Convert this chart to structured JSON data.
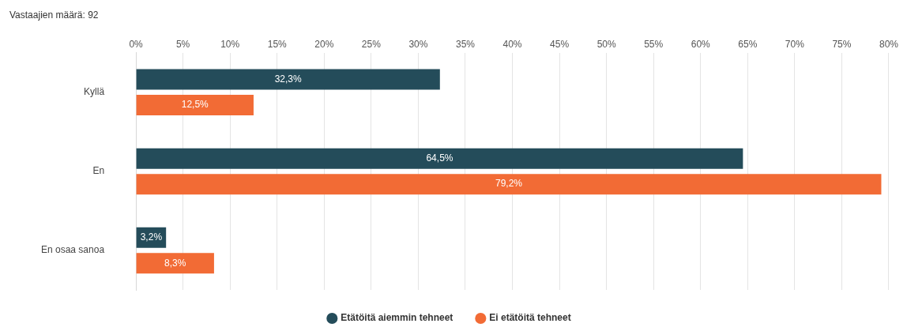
{
  "chart_data": {
    "type": "bar",
    "orientation": "horizontal",
    "title": "Vastaajien määrä: 92",
    "categories": [
      "Kyllä",
      "En",
      "En osaa sanoa"
    ],
    "series": [
      {
        "name": "Etätöitä aiemmin tehneet",
        "color": "#244c5a",
        "values": [
          32.3,
          64.5,
          3.2
        ],
        "value_labels": [
          "32,3%",
          "64,5%",
          "3,2%"
        ]
      },
      {
        "name": "Ei etätöitä tehneet",
        "color": "#f26b35",
        "values": [
          12.5,
          79.2,
          8.3
        ],
        "value_labels": [
          "12,5%",
          "79,2%",
          "8,3%"
        ]
      }
    ],
    "xlim": [
      0,
      80
    ],
    "xticks": [
      {
        "value": 0,
        "label": "0%"
      },
      {
        "value": 5,
        "label": "5%"
      },
      {
        "value": 10,
        "label": "10%"
      },
      {
        "value": 15,
        "label": "15%"
      },
      {
        "value": 20,
        "label": "20%"
      },
      {
        "value": 25,
        "label": "25%"
      },
      {
        "value": 30,
        "label": "30%"
      },
      {
        "value": 35,
        "label": "35%"
      },
      {
        "value": 40,
        "label": "40%"
      },
      {
        "value": 45,
        "label": "45%"
      },
      {
        "value": 50,
        "label": "50%"
      },
      {
        "value": 55,
        "label": "55%"
      },
      {
        "value": 60,
        "label": "60%"
      },
      {
        "value": 65,
        "label": "65%"
      },
      {
        "value": 70,
        "label": "70%"
      },
      {
        "value": 75,
        "label": "75%"
      },
      {
        "value": 80,
        "label": "80%"
      }
    ],
    "grid": "x",
    "legend": "bottom"
  }
}
